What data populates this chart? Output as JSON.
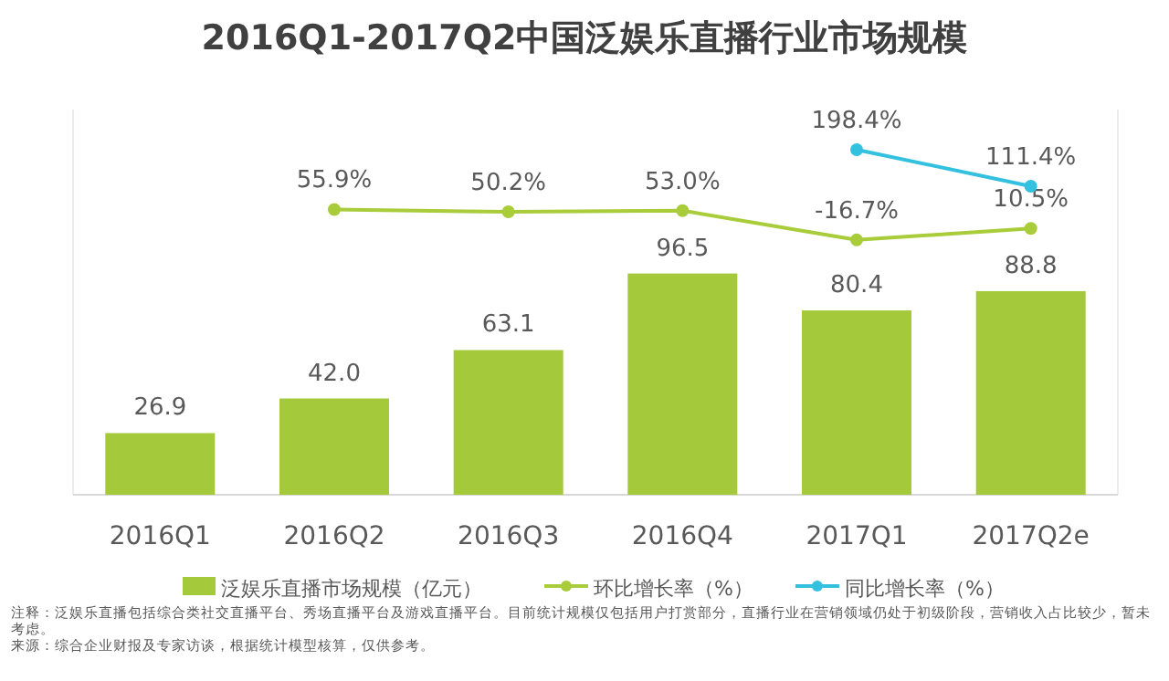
{
  "chart_data": {
    "type": "bar",
    "title": "2016Q1-2017Q2中国泛娱乐直播行业市场规模",
    "categories": [
      "2016Q1",
      "2016Q2",
      "2016Q3",
      "2016Q4",
      "2017Q1",
      "2017Q2e"
    ],
    "series": [
      {
        "name": "泛娱乐直播市场规模（亿元）",
        "color": "#a4c93a",
        "values": [
          26.9,
          42.0,
          63.1,
          96.5,
          80.4,
          88.8
        ],
        "value_labels": [
          "26.9",
          "42.0",
          "63.1",
          "96.5",
          "80.4",
          "88.8"
        ]
      },
      {
        "name": "环比增长率（%）",
        "type": "line",
        "axis": "y2",
        "color": "#a8cc3a",
        "marker": "circle",
        "values": [
          null,
          55.9,
          50.2,
          53.0,
          -16.7,
          10.5
        ],
        "value_labels": [
          null,
          "55.9%",
          "50.2%",
          "53.0%",
          "-16.7%",
          "10.5%"
        ]
      },
      {
        "name": "同比增长率（%）",
        "type": "line",
        "axis": "y2",
        "color": "#34c1e0",
        "marker": "circle",
        "values": [
          null,
          null,
          null,
          null,
          198.4,
          111.4
        ],
        "value_labels": [
          null,
          null,
          null,
          null,
          "198.4%",
          "111.4%"
        ]
      }
    ],
    "ylim": [
      0,
      168
    ],
    "y2lim": [
      -624,
      294
    ],
    "tick_labels": "x",
    "legend": "bottom",
    "annotations": [
      "注释：泛娱乐直播包括综合类社交直播平台、秀场直播平台及游戏直播平台。目前统计规模仅包括用户打赏部分，直播行业在营销领域仍处于初级阶段，营销收入占比较少，暂未考虑。",
      "来源：综合企业财报及专家访谈，根据统计模型核算，仅供参考。"
    ]
  }
}
